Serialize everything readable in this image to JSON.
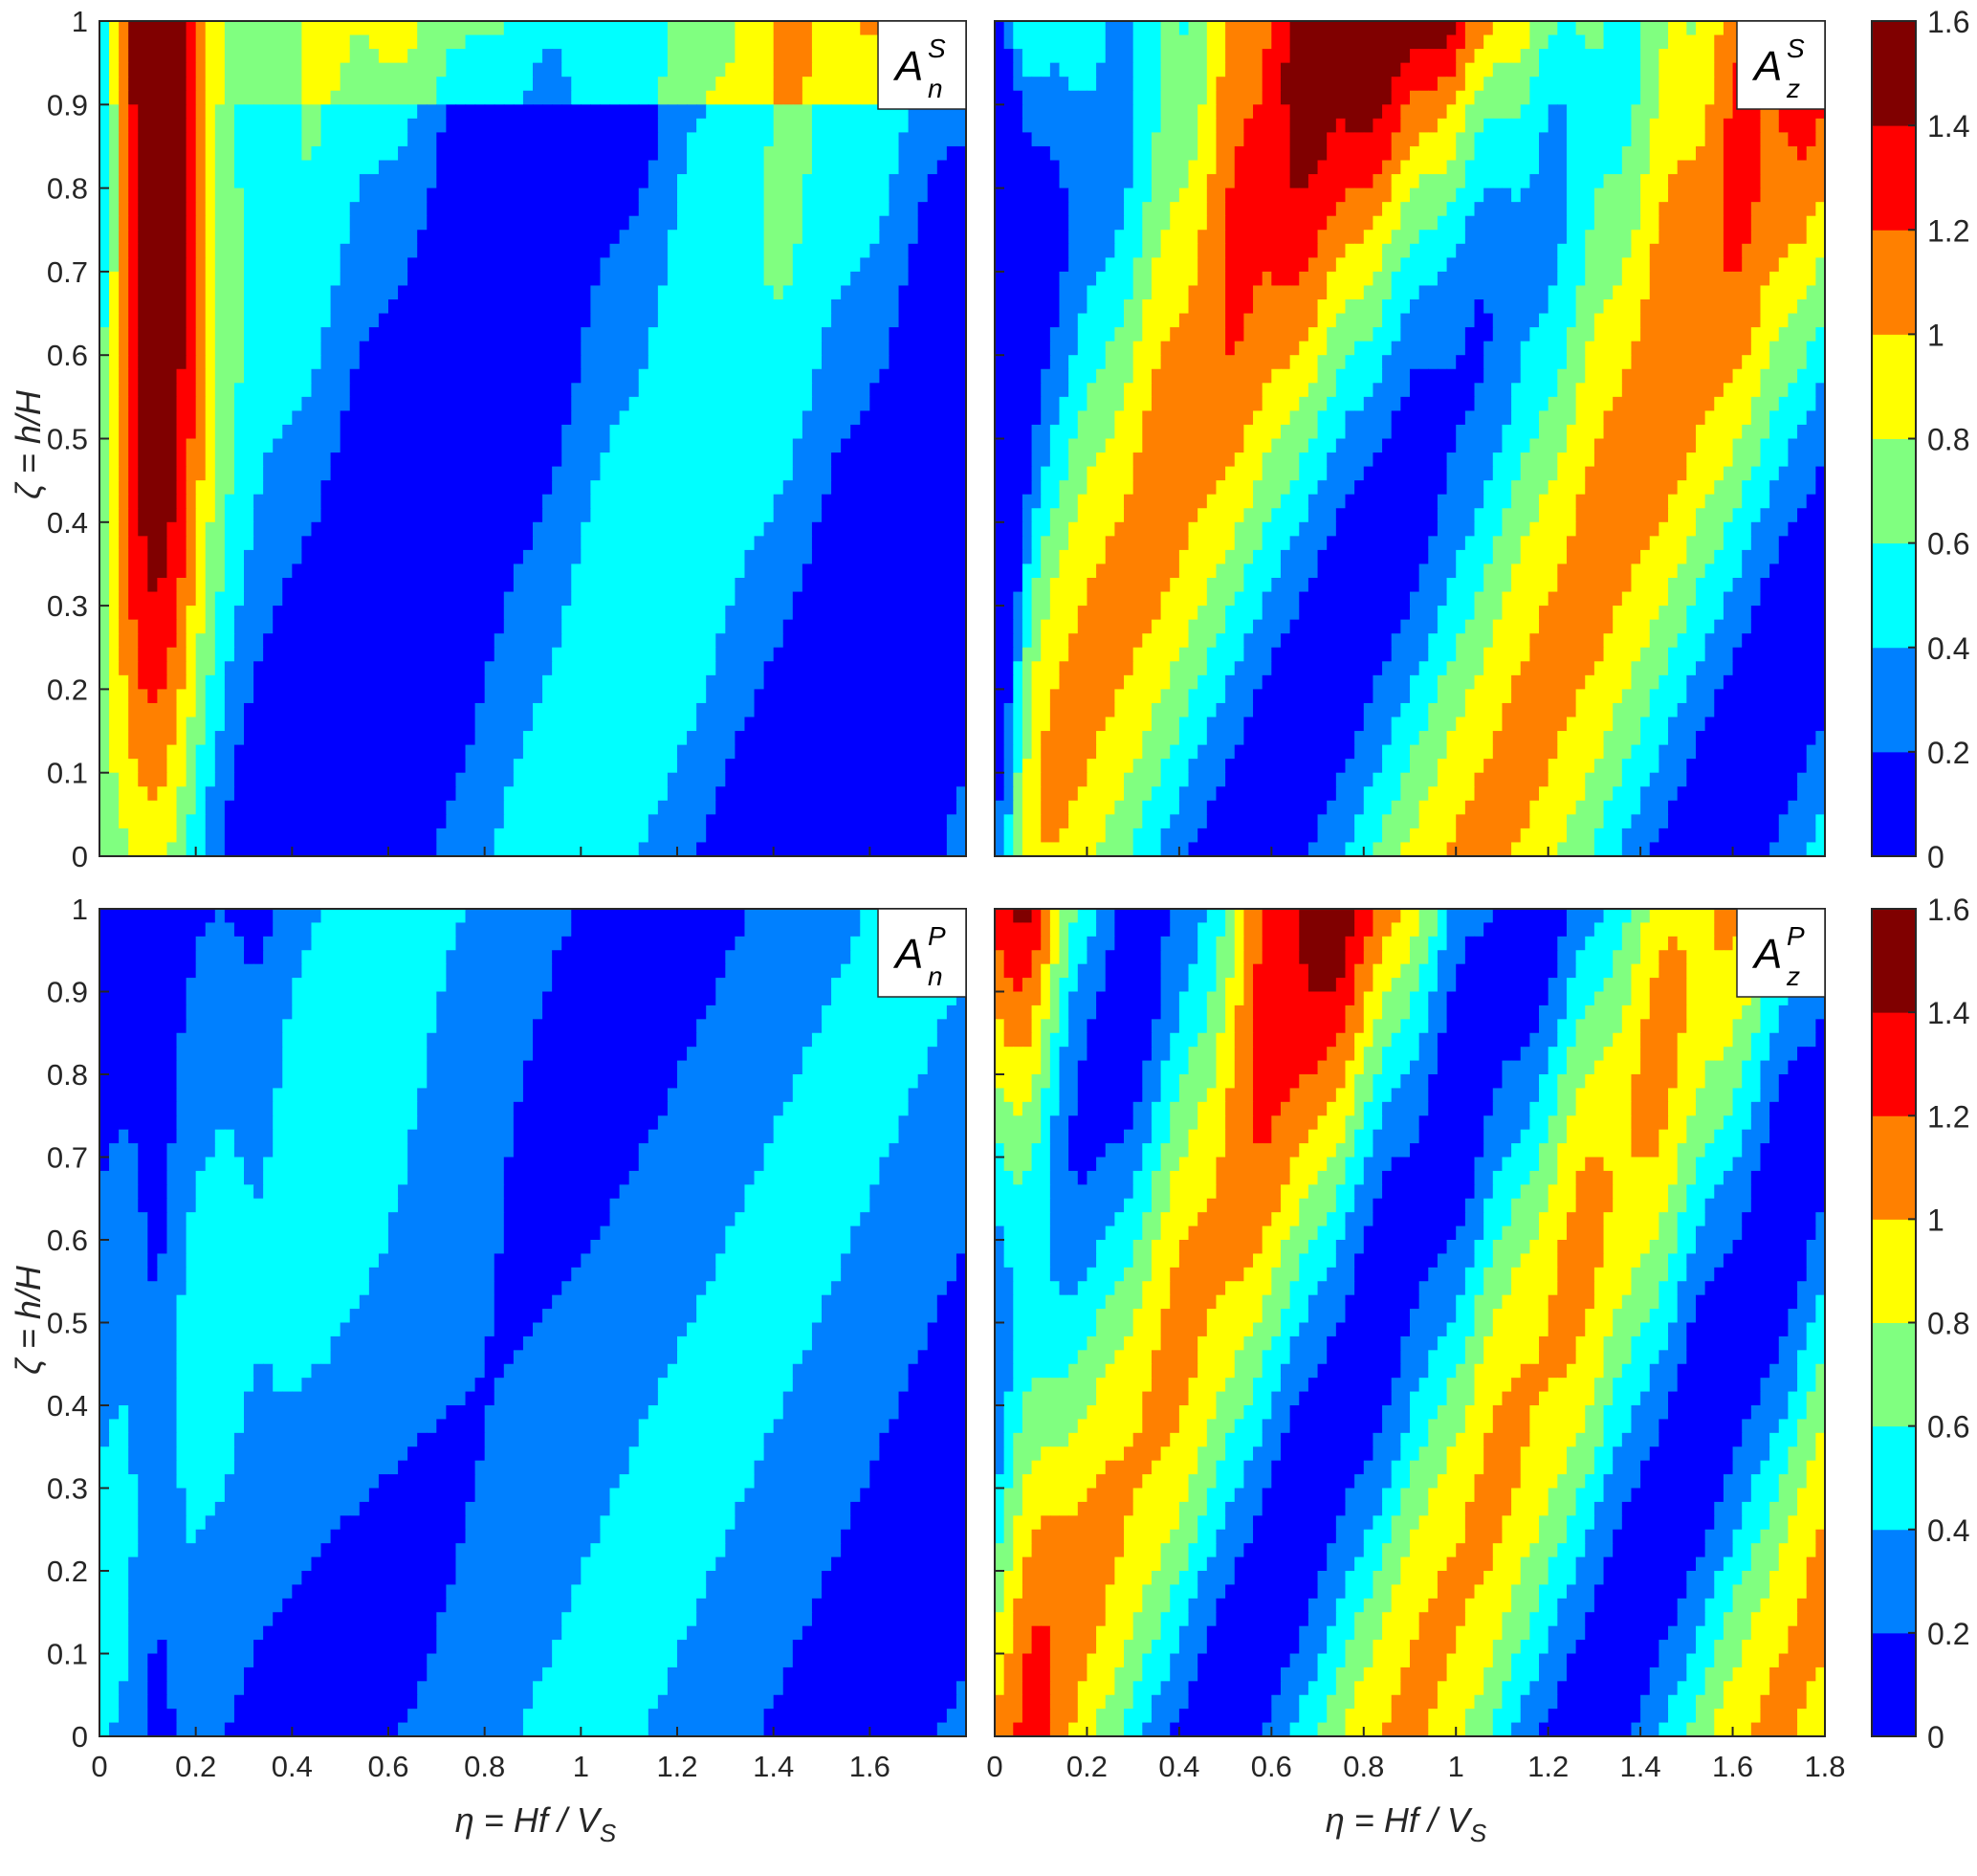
{
  "chart_data": {
    "type": "heatmap",
    "subtype": "filled-contour",
    "layout": "2x2 grid with shared colorbars per row",
    "colormap": "jet",
    "levels": [
      0,
      0.2,
      0.4,
      0.6,
      0.8,
      1,
      1.2,
      1.4,
      1.6
    ],
    "level_colors": [
      "#0000ff",
      "#0080ff",
      "#00ffff",
      "#80ff80",
      "#ffff00",
      "#ff8000",
      "#ff0000",
      "#800000"
    ],
    "xlim": [
      0,
      1.8
    ],
    "ylim": [
      0,
      1
    ],
    "x_ticks": [
      "0",
      "0.2",
      "0.4",
      "0.6",
      "0.8",
      "1",
      "1.2",
      "1.4",
      "1.6",
      "1.8"
    ],
    "x_ticks_left": [
      "0",
      "0.2",
      "0.4",
      "0.6",
      "0.8",
      "1",
      "1.2",
      "1.4",
      "1.6"
    ],
    "y_ticks": [
      "0",
      "0.1",
      "0.2",
      "0.3",
      "0.4",
      "0.5",
      "0.6",
      "0.7",
      "0.8",
      "0.9",
      "1"
    ],
    "colorbar_ticks": [
      "0",
      "0.2",
      "0.4",
      "0.6",
      "0.8",
      "1",
      "1.2",
      "1.4",
      "1.6"
    ],
    "colorbar_range": [
      0,
      1.6
    ],
    "ylabel": {
      "zeta": "ζ",
      "rest": " = h/H"
    },
    "xlabel": {
      "eta": "η",
      "rest": " = Hf / V",
      "sub": "S"
    },
    "panels": [
      {
        "id": "AnS",
        "label_main": "A",
        "label_sup": "S",
        "label_sub": "n",
        "row": 0,
        "col": 0
      },
      {
        "id": "AzS",
        "label_main": "A",
        "label_sup": "S",
        "label_sub": "z",
        "row": 0,
        "col": 1
      },
      {
        "id": "AnP",
        "label_main": "A",
        "label_sup": "P",
        "label_sub": "n",
        "row": 1,
        "col": 0
      },
      {
        "id": "AzP",
        "label_main": "A",
        "label_sup": "P",
        "label_sub": "z",
        "row": 1,
        "col": 1
      }
    ]
  }
}
